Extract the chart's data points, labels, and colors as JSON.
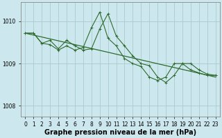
{
  "title": "Graphe pression niveau de la mer (hPa)",
  "background_color": "#cce8ee",
  "grid_color": "#aacccc",
  "line_color": "#2d6a2d",
  "xlim": [
    -0.5,
    23.5
  ],
  "ylim": [
    1007.75,
    1010.45
  ],
  "yticks": [
    1008,
    1009,
    1010
  ],
  "xticks": [
    0,
    1,
    2,
    3,
    4,
    5,
    6,
    7,
    8,
    9,
    10,
    11,
    12,
    13,
    14,
    15,
    16,
    17,
    18,
    19,
    20,
    21,
    22,
    23
  ],
  "trend_x": [
    0,
    23
  ],
  "trend_y": [
    1009.72,
    1008.68
  ],
  "series2_x": [
    0,
    1,
    2,
    3,
    4,
    5,
    6,
    7,
    8,
    9,
    10,
    11,
    12,
    13,
    14,
    15,
    16,
    17,
    18,
    19,
    20,
    21,
    22,
    23
  ],
  "series2_y": [
    1009.72,
    1009.72,
    1009.48,
    1009.55,
    1009.35,
    1009.55,
    1009.42,
    1009.32,
    1009.35,
    1009.82,
    1010.18,
    1009.65,
    1009.42,
    1009.18,
    1009.0,
    1008.95,
    1008.68,
    1008.55,
    1008.72,
    1009.0,
    1009.0,
    1008.85,
    1008.75,
    1008.72
  ],
  "series3_x": [
    0,
    1,
    2,
    3,
    4,
    5,
    6,
    7,
    8,
    9,
    10,
    11,
    12,
    13,
    14,
    15,
    16,
    17,
    18,
    19,
    20,
    21,
    22,
    23
  ],
  "series3_y": [
    1009.72,
    1009.72,
    1009.48,
    1009.45,
    1009.32,
    1009.42,
    1009.32,
    1009.38,
    1009.85,
    1010.22,
    1009.6,
    1009.42,
    1009.12,
    1009.0,
    1008.93,
    1008.68,
    1008.6,
    1008.68,
    1009.0,
    1009.0,
    1008.85,
    1008.78,
    1008.72,
    1008.72
  ],
  "tick_fontsize": 5.5,
  "label_fontsize": 7.0
}
